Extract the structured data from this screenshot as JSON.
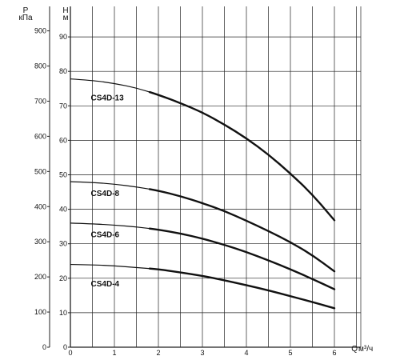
{
  "chart_data": {
    "type": "line",
    "left_axis": {
      "symbol": "P",
      "unit": "кПа",
      "ticks": [
        "0",
        "100",
        "200",
        "300",
        "400",
        "500",
        "600",
        "700",
        "800",
        "900"
      ]
    },
    "right_axis": {
      "symbol": "H",
      "unit": "м",
      "ticks": [
        "0",
        "10",
        "20",
        "30",
        "40",
        "50",
        "60",
        "70",
        "80",
        "90"
      ]
    },
    "x_axis": {
      "symbol": "Q",
      "unit": "м³/ч",
      "ticks": [
        "0",
        "1",
        "2",
        "3",
        "4",
        "5",
        "6"
      ],
      "xlim": [
        0,
        6.6
      ]
    },
    "ylim": [
      0,
      95
    ],
    "grid": true,
    "x": [
      0,
      0.5,
      1,
      1.5,
      2,
      2.5,
      3,
      3.5,
      4,
      4.5,
      5,
      5.5,
      6
    ],
    "series": [
      {
        "name": "CS4D-13",
        "values": [
          77.8,
          77.4,
          76.5,
          75.2,
          73.2,
          70.8,
          68.1,
          64.6,
          60.6,
          55.9,
          50.4,
          44.3,
          36.8
        ]
      },
      {
        "name": "CS4D-8",
        "values": [
          48.0,
          47.8,
          47.3,
          46.5,
          45.4,
          43.8,
          41.8,
          39.5,
          36.7,
          33.7,
          30.5,
          26.7,
          22.0
        ]
      },
      {
        "name": "CS4D-6",
        "values": [
          36.0,
          35.8,
          35.4,
          34.9,
          34.1,
          33.0,
          31.5,
          29.7,
          27.6,
          25.2,
          22.6,
          19.8,
          16.8
        ]
      },
      {
        "name": "CS4D-4",
        "values": [
          24.0,
          23.9,
          23.6,
          23.1,
          22.6,
          21.7,
          20.7,
          19.4,
          18.0,
          16.5,
          14.8,
          13.1,
          11.3
        ]
      }
    ],
    "title": ""
  }
}
